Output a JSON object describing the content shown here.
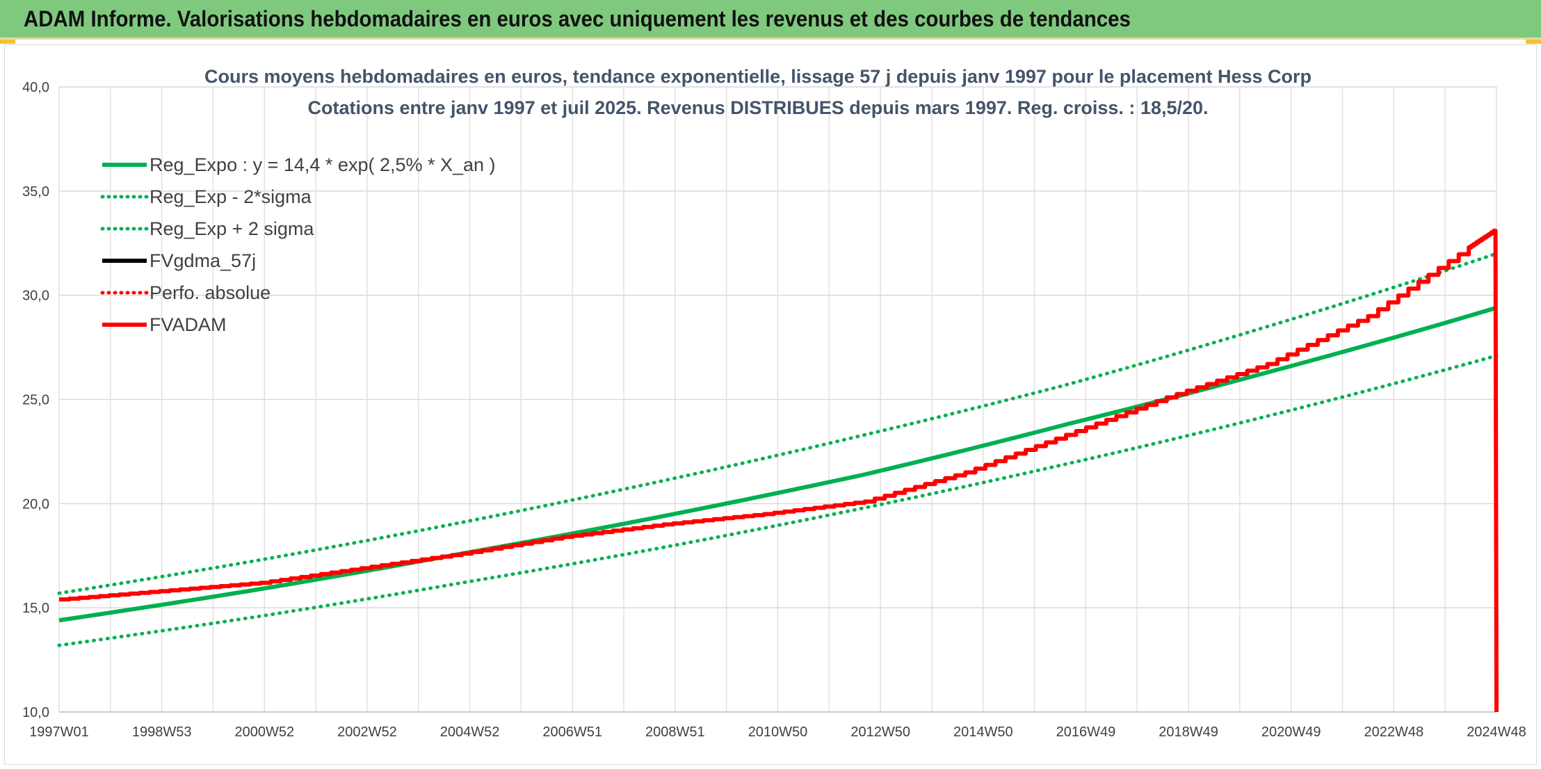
{
  "header": {
    "title": "ADAM Informe. Valorisations hebdomadaires en euros avec uniquement les revenus et des courbes de tendances"
  },
  "chart_data": {
    "type": "line",
    "title_lines": [
      "Cours moyens hebdomadaires en euros, tendance exponentielle, lissage 57 j depuis janv 1997 pour le placement Hess Corp",
      "Cotations entre janv 1997 et juil 2025. Revenus DISTRIBUES depuis mars 1997. Reg. croiss. : 18,5/20."
    ],
    "xlabel": "",
    "ylabel": "",
    "ylim": [
      10,
      40
    ],
    "y_ticks": [
      "10,0",
      "15,0",
      "20,0",
      "25,0",
      "30,0",
      "35,0",
      "40,0"
    ],
    "x_ticks": [
      "1997W01",
      "1998W53",
      "2000W52",
      "2002W52",
      "2004W52",
      "2006W51",
      "2008W51",
      "2010W50",
      "2012W50",
      "2014W50",
      "2016W49",
      "2018W49",
      "2020W49",
      "2022W48",
      "2024W48"
    ],
    "x_range_years": [
      1997.0,
      2025.55
    ],
    "grid": true,
    "legend_position": "top-left",
    "series": [
      {
        "name": "Reg_Expo : y = 14,4 * exp( 2,5% *  X_an )",
        "style": "solid",
        "color": "#00b050",
        "x": [
          1997.0,
          2001.0,
          2005.0,
          2009.0,
          2013.0,
          2017.0,
          2021.0,
          2025.55
        ],
        "values": [
          14.4,
          15.9,
          17.6,
          19.4,
          21.4,
          23.8,
          26.3,
          29.4
        ]
      },
      {
        "name": "Reg_Exp - 2*sigma",
        "style": "dotted",
        "color": "#00b050",
        "x": [
          1997.0,
          2001.0,
          2005.0,
          2009.0,
          2013.0,
          2017.0,
          2021.0,
          2025.55
        ],
        "values": [
          13.2,
          14.6,
          16.2,
          17.9,
          19.8,
          21.9,
          24.2,
          27.1
        ]
      },
      {
        "name": "Reg_Exp + 2 sigma",
        "style": "dotted",
        "color": "#00b050",
        "x": [
          1997.0,
          2001.0,
          2005.0,
          2009.0,
          2013.0,
          2017.0,
          2021.0,
          2025.55
        ],
        "values": [
          15.7,
          17.3,
          19.1,
          21.1,
          23.3,
          25.7,
          28.5,
          32.0
        ]
      },
      {
        "name": "FVgdma_57j",
        "style": "solid",
        "color": "#000000",
        "x": [],
        "values": []
      },
      {
        "name": "Perfo. absolue",
        "style": "dotted",
        "color": "#ff0000",
        "x": [],
        "values": []
      },
      {
        "name": "FVADAM",
        "style": "solid",
        "color": "#ff0000",
        "x": [
          1997.0,
          1999.0,
          2001.0,
          2003.0,
          2005.0,
          2007.0,
          2009.0,
          2011.0,
          2013.0,
          2015.0,
          2017.0,
          2019.0,
          2021.0,
          2023.0,
          2025.0,
          2025.5,
          2025.53,
          2025.55
        ],
        "values": [
          15.4,
          15.8,
          16.2,
          16.9,
          17.6,
          18.4,
          19.0,
          19.5,
          20.1,
          21.5,
          23.3,
          25.1,
          26.7,
          29.0,
          32.3,
          33.1,
          33.1,
          10.0
        ]
      }
    ]
  }
}
